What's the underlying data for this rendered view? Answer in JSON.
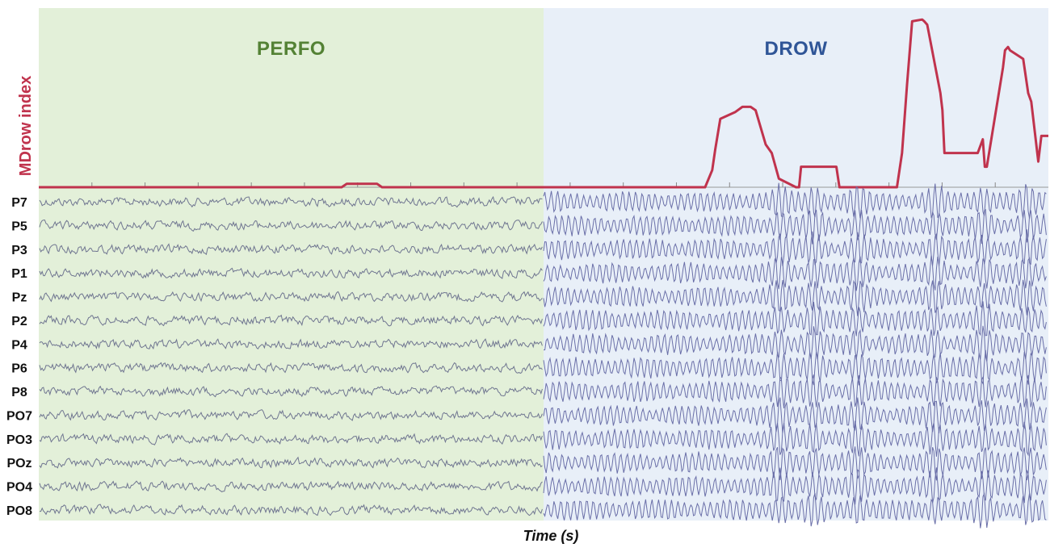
{
  "chart_data": {
    "type": "line",
    "xlabel": "Time (s)",
    "ylabel": "MDrow index",
    "x_ticks_count": 18,
    "regions": [
      {
        "label": "PERFO",
        "x_start": 0.0,
        "x_end": 0.5,
        "fill": "#e3f0d9",
        "label_color": "#548235"
      },
      {
        "label": "DROW",
        "x_start": 0.5,
        "x_end": 1.0,
        "fill": "#e8eff8",
        "label_color": "#2f5597"
      }
    ],
    "index_series": {
      "name": "MDrow index",
      "color": "#c0334d",
      "x": [
        0,
        0.3,
        0.305,
        0.31,
        0.335,
        0.34,
        0.345,
        0.4,
        0.5,
        0.6,
        0.66,
        0.667,
        0.67,
        0.675,
        0.69,
        0.697,
        0.705,
        0.71,
        0.72,
        0.726,
        0.733,
        0.75,
        0.753,
        0.755,
        0.79,
        0.793,
        0.8,
        0.85,
        0.855,
        0.86,
        0.865,
        0.875,
        0.877,
        0.88,
        0.893,
        0.895,
        0.897,
        0.898,
        0.902,
        0.905,
        0.93,
        0.935,
        0.937,
        0.939,
        0.955,
        0.957,
        0.96,
        0.962,
        0.975,
        0.98,
        0.983,
        0.99,
        0.993,
        1.0
      ],
      "y": [
        0.0,
        0.0,
        0.02,
        0.02,
        0.02,
        0.0,
        0.0,
        0.0,
        0.0,
        0.0,
        0.0,
        0.1,
        0.22,
        0.4,
        0.44,
        0.47,
        0.47,
        0.45,
        0.25,
        0.2,
        0.05,
        0.0,
        0.0,
        0.12,
        0.12,
        0.0,
        0.0,
        0.0,
        0.2,
        0.6,
        0.97,
        0.98,
        0.97,
        0.95,
        0.55,
        0.45,
        0.2,
        0.2,
        0.2,
        0.2,
        0.2,
        0.28,
        0.12,
        0.12,
        0.7,
        0.8,
        0.82,
        0.8,
        0.75,
        0.55,
        0.5,
        0.15,
        0.3,
        0.3
      ]
    },
    "channels": [
      "P7",
      "P5",
      "P3",
      "P1",
      "Pz",
      "P2",
      "P4",
      "P6",
      "P8",
      "PO7",
      "PO3",
      "POz",
      "PO4",
      "PO8"
    ],
    "eeg_amplitude": {
      "PERFO": 0.2,
      "DROW": 0.55
    },
    "eeg_color": {
      "PERFO": "#6f7590",
      "DROW": "#6a6fa8"
    },
    "alpha_bursts": [
      0.765,
      0.8,
      0.845,
      0.925,
      0.975,
      1.02,
      1.05
    ]
  },
  "colors": {
    "baseline": "#b00020",
    "tick": "#888888"
  }
}
